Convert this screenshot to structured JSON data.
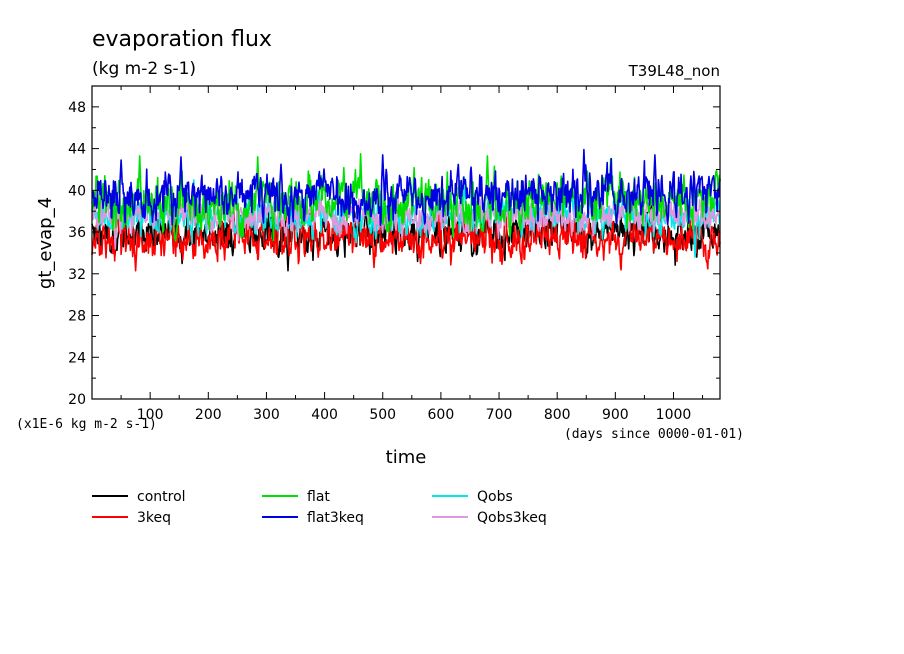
{
  "chart_data": {
    "type": "line",
    "title": "evaporation flux",
    "subtitle": "(kg m-2 s-1)",
    "run_label": "T39L48_non",
    "ylabel": "gt_evap_4",
    "xlabel": "time",
    "y_unit_note": "(x1E-6 kg m-2 s-1)",
    "x_unit_note": "(days since 0000-01-01)",
    "xlim": [
      0,
      1080
    ],
    "ylim": [
      20,
      50
    ],
    "x_ticks": [
      100,
      200,
      300,
      400,
      500,
      600,
      700,
      800,
      900,
      1000
    ],
    "y_ticks": [
      20,
      24,
      28,
      32,
      36,
      40,
      44,
      48
    ],
    "grid": false,
    "legend_position": "below",
    "series": [
      {
        "name": "control",
        "color": "#000000",
        "mean": 36.0,
        "spread": 1.3,
        "min_value": 32.3,
        "max_value": 38.5,
        "extremes": [
          [
            337,
            32.3
          ],
          [
            155,
            33.0
          ],
          [
            560,
            33.2
          ],
          [
            1040,
            33.6
          ]
        ]
      },
      {
        "name": "3keq",
        "color": "#ff0000",
        "mean": 35.4,
        "spread": 1.3,
        "min_value": 32.3,
        "max_value": 38.0,
        "extremes": [
          [
            75,
            32.3
          ],
          [
            485,
            32.6
          ],
          [
            565,
            33.0
          ],
          [
            1075,
            33.8
          ]
        ]
      },
      {
        "name": "flat",
        "color": "#00e000",
        "mean": 38.8,
        "spread": 1.6,
        "min_value": 35.0,
        "max_value": 43.5,
        "extremes": [
          [
            82,
            43.3
          ],
          [
            285,
            43.2
          ],
          [
            462,
            43.5
          ],
          [
            680,
            43.3
          ],
          [
            892,
            43.0
          ]
        ]
      },
      {
        "name": "flat3keq",
        "color": "#0000e0",
        "mean": 39.6,
        "spread": 1.5,
        "min_value": 35.5,
        "max_value": 43.9,
        "extremes": [
          [
            50,
            42.9
          ],
          [
            153,
            43.2
          ],
          [
            325,
            42.5
          ],
          [
            500,
            43.4
          ],
          [
            846,
            43.9
          ],
          [
            968,
            43.4
          ]
        ]
      },
      {
        "name": "Qobs",
        "color": "#00e8e8",
        "mean": 37.6,
        "spread": 1.2,
        "min_value": 33.6,
        "max_value": 41.3,
        "extremes": [
          [
            1037,
            33.6
          ],
          [
            175,
            41.0
          ],
          [
            640,
            41.3
          ]
        ]
      },
      {
        "name": "Qobs3keq",
        "color": "#dd99dd",
        "mean": 37.6,
        "spread": 1.0,
        "min_value": 34.4,
        "max_value": 40.5,
        "extremes": [
          [
            40,
            34.4
          ],
          [
            870,
            40.4
          ]
        ]
      }
    ]
  }
}
